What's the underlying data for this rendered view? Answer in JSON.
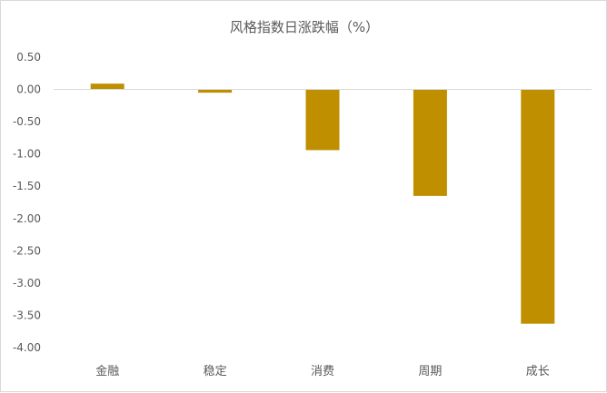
{
  "chart_data": {
    "type": "bar",
    "title": "风格指数日涨跌幅（%）",
    "categories": [
      "金融",
      "稳定",
      "消费",
      "周期",
      "成长"
    ],
    "values": [
      0.09,
      -0.05,
      -0.94,
      -1.65,
      -3.63
    ],
    "ylim": [
      -4.0,
      0.5
    ],
    "yticks": [
      "0.50",
      "0.00",
      "-0.50",
      "-1.00",
      "-1.50",
      "-2.00",
      "-2.50",
      "-3.00",
      "-3.50",
      "-4.00"
    ],
    "grid": false,
    "bar_color": "#bf8f00",
    "axis_color": "#d9d9d9"
  }
}
